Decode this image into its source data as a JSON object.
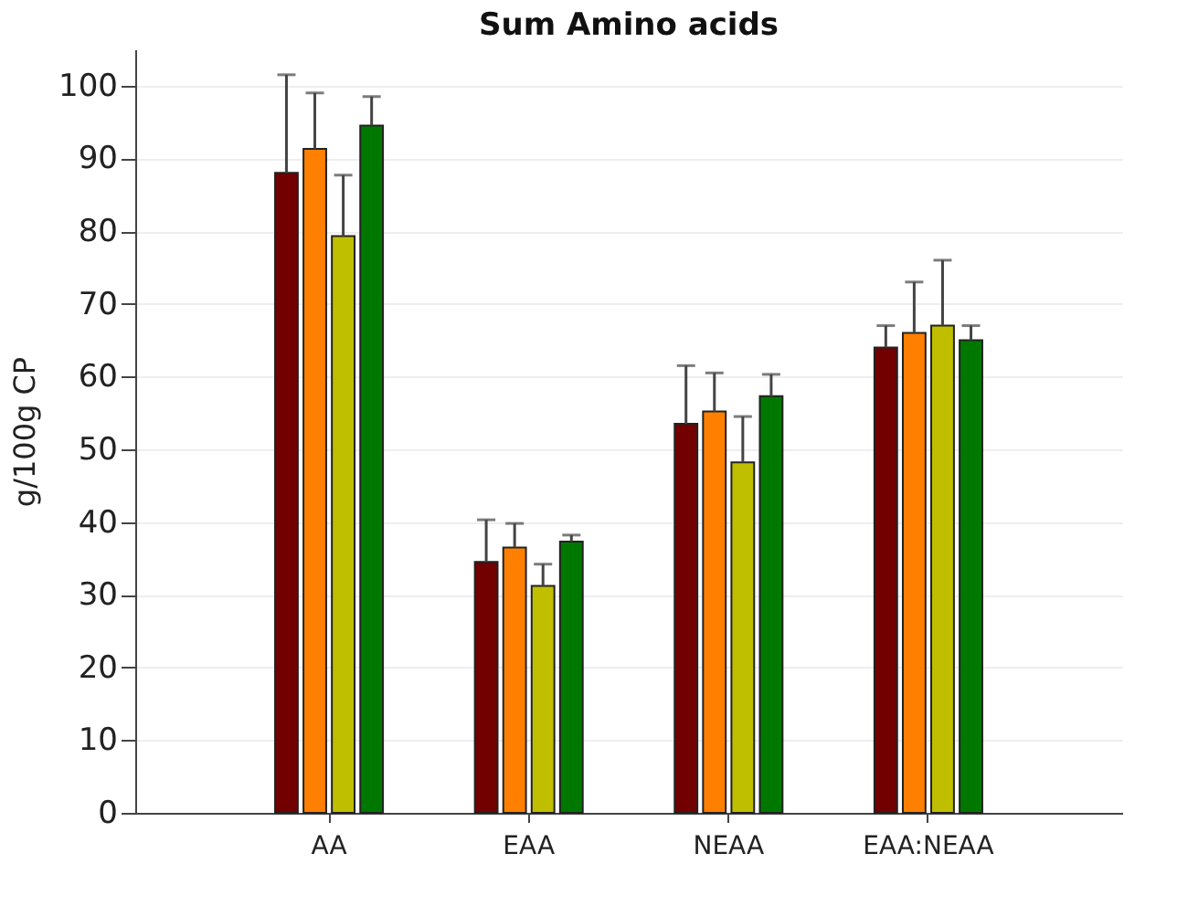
{
  "chart_data": {
    "type": "bar",
    "title": "Sum Amino acids",
    "ylabel": "g/100g CP",
    "categories": [
      "AA",
      "EAA",
      "NEAA",
      "EAA:NEAA"
    ],
    "series": [
      {
        "color": "#720000",
        "values": [
          88,
          34.5,
          53.5,
          64
        ],
        "errors": [
          [
            88,
            101.5
          ],
          [
            34.5,
            40.3
          ],
          [
            53.5,
            61.5
          ],
          [
            64,
            67
          ]
        ]
      },
      {
        "color": "#ff8000",
        "values": [
          91.3,
          36.5,
          55.2,
          66
        ],
        "errors": [
          [
            91.3,
            99
          ],
          [
            36.5,
            39.8
          ],
          [
            55.2,
            60.5
          ],
          [
            66,
            73
          ]
        ]
      },
      {
        "color": "#bfbf00",
        "values": [
          79.3,
          31.2,
          48.2,
          67
        ],
        "errors": [
          [
            79.3,
            87.7
          ],
          [
            31.2,
            34.2
          ],
          [
            48.2,
            54.5
          ],
          [
            67,
            76
          ]
        ]
      },
      {
        "color": "#007800",
        "values": [
          94.5,
          37.3,
          57.3,
          65
        ],
        "errors": [
          [
            94.5,
            98.5
          ],
          [
            37.3,
            38.2
          ],
          [
            57.3,
            60.3
          ],
          [
            65,
            67
          ]
        ]
      }
    ],
    "ylim": [
      0,
      105
    ],
    "yticks": [
      0,
      10,
      20,
      30,
      40,
      50,
      60,
      70,
      80,
      90,
      100
    ],
    "grid": "y",
    "legend": false
  }
}
